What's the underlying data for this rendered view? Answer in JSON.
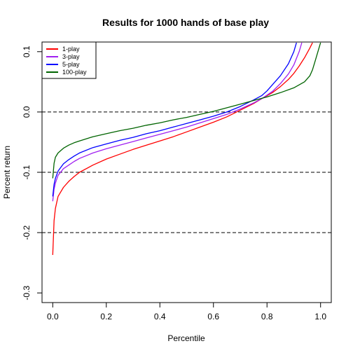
{
  "chart_data": {
    "type": "line",
    "title": "Results for 1000 hands of base play",
    "xlabel": "Percentile",
    "ylabel": "Percent return",
    "xlim": [
      0,
      1
    ],
    "ylim": [
      -0.3,
      0.1
    ],
    "xticks": [
      0,
      0.2,
      0.4,
      0.6,
      0.8,
      1
    ],
    "xtick_labels": [
      "0.0",
      "0.2",
      "0.4",
      "0.6",
      "0.8",
      "1.0"
    ],
    "yticks": [
      -0.3,
      -0.2,
      -0.1,
      0,
      0.1
    ],
    "ytick_labels": [
      "-0.3",
      "-0.2",
      "-0.1",
      "0.0",
      "0.1"
    ],
    "reference_lines": [
      0,
      -0.1,
      -0.2
    ],
    "grid": false,
    "legend_position": "top-left",
    "series": [
      {
        "name": "1-play",
        "color": "#ff0000",
        "x": [
          0,
          0.005,
          0.01,
          0.02,
          0.04,
          0.06,
          0.08,
          0.1,
          0.15,
          0.2,
          0.25,
          0.3,
          0.35,
          0.4,
          0.45,
          0.5,
          0.55,
          0.6,
          0.65,
          0.7,
          0.75,
          0.78,
          0.82,
          0.85,
          0.88,
          0.9,
          0.92,
          0.94,
          0.96,
          0.97
        ],
        "y": [
          -0.237,
          -0.18,
          -0.16,
          -0.14,
          -0.125,
          -0.115,
          -0.107,
          -0.1,
          -0.088,
          -0.078,
          -0.07,
          -0.062,
          -0.055,
          -0.048,
          -0.041,
          -0.033,
          -0.025,
          -0.017,
          -0.008,
          0.003,
          0.014,
          0.022,
          0.032,
          0.042,
          0.054,
          0.064,
          0.076,
          0.09,
          0.106,
          0.115
        ]
      },
      {
        "name": "3-play",
        "color": "#a020f0",
        "x": [
          0,
          0.005,
          0.01,
          0.02,
          0.04,
          0.06,
          0.08,
          0.1,
          0.15,
          0.2,
          0.25,
          0.3,
          0.35,
          0.4,
          0.45,
          0.5,
          0.55,
          0.6,
          0.65,
          0.7,
          0.75,
          0.78,
          0.82,
          0.85,
          0.88,
          0.9,
          0.92,
          0.93
        ],
        "y": [
          -0.148,
          -0.128,
          -0.118,
          -0.105,
          -0.094,
          -0.088,
          -0.082,
          -0.077,
          -0.068,
          -0.061,
          -0.055,
          -0.049,
          -0.043,
          -0.037,
          -0.031,
          -0.025,
          -0.018,
          -0.011,
          -0.004,
          0.005,
          0.015,
          0.022,
          0.034,
          0.047,
          0.063,
          0.078,
          0.1,
          0.115
        ]
      },
      {
        "name": "5-play",
        "color": "#0000ff",
        "x": [
          0,
          0.005,
          0.01,
          0.02,
          0.04,
          0.06,
          0.08,
          0.1,
          0.15,
          0.2,
          0.25,
          0.3,
          0.35,
          0.4,
          0.45,
          0.5,
          0.55,
          0.6,
          0.65,
          0.7,
          0.75,
          0.78,
          0.8,
          0.82,
          0.85,
          0.88,
          0.9,
          0.91
        ],
        "y": [
          -0.14,
          -0.12,
          -0.11,
          -0.098,
          -0.086,
          -0.079,
          -0.073,
          -0.068,
          -0.059,
          -0.053,
          -0.047,
          -0.042,
          -0.036,
          -0.031,
          -0.025,
          -0.019,
          -0.013,
          -0.007,
          0.0,
          0.009,
          0.02,
          0.027,
          0.035,
          0.045,
          0.06,
          0.08,
          0.1,
          0.115
        ]
      },
      {
        "name": "100-play",
        "color": "#006400",
        "x": [
          0,
          0.005,
          0.01,
          0.02,
          0.04,
          0.06,
          0.08,
          0.1,
          0.15,
          0.2,
          0.25,
          0.3,
          0.35,
          0.4,
          0.45,
          0.5,
          0.55,
          0.6,
          0.65,
          0.7,
          0.75,
          0.8,
          0.85,
          0.9,
          0.94,
          0.96,
          0.97,
          0.98,
          0.99,
          1.0
        ],
        "y": [
          -0.11,
          -0.085,
          -0.075,
          -0.068,
          -0.06,
          -0.055,
          -0.051,
          -0.048,
          -0.041,
          -0.036,
          -0.031,
          -0.027,
          -0.022,
          -0.018,
          -0.013,
          -0.009,
          -0.004,
          0.001,
          0.007,
          0.013,
          0.019,
          0.025,
          0.032,
          0.04,
          0.05,
          0.06,
          0.07,
          0.085,
          0.1,
          0.115
        ]
      }
    ]
  }
}
